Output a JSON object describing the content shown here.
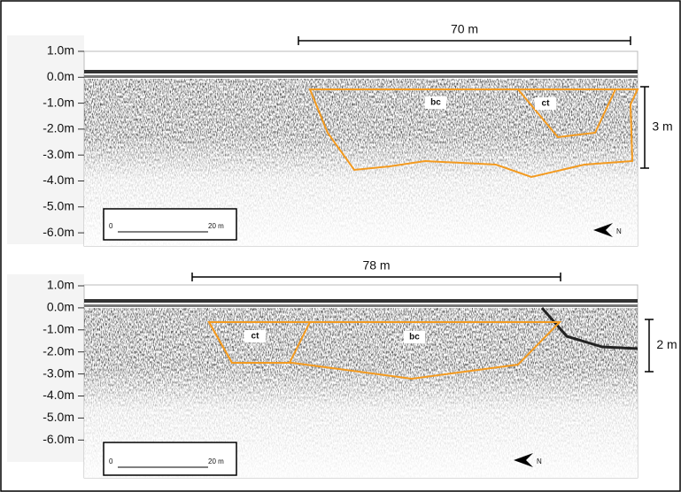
{
  "panels": [
    {
      "depth_labels": [
        "1.0m",
        "0.0m",
        "-1.0m",
        "-2.0m",
        "-3.0m",
        "-4.0m",
        "-5.0m",
        "-6.0m"
      ],
      "span_label": "70 m",
      "vertical_label": "3 m",
      "units": [
        {
          "label": "bc"
        },
        {
          "label": "ct"
        }
      ],
      "scale_bar": {
        "start": "0",
        "end": "20 m"
      },
      "north": "N"
    },
    {
      "depth_labels": [
        "1.0m",
        "0.0m",
        "-1.0m",
        "-2.0m",
        "-3.0m",
        "-4.0m",
        "-5.0m",
        "-6.0m"
      ],
      "span_label": "78 m",
      "vertical_label": "2 m",
      "units": [
        {
          "label": "ct"
        },
        {
          "label": "bc"
        }
      ],
      "scale_bar": {
        "start": "0",
        "end": "20 m"
      },
      "north": "N"
    }
  ]
}
